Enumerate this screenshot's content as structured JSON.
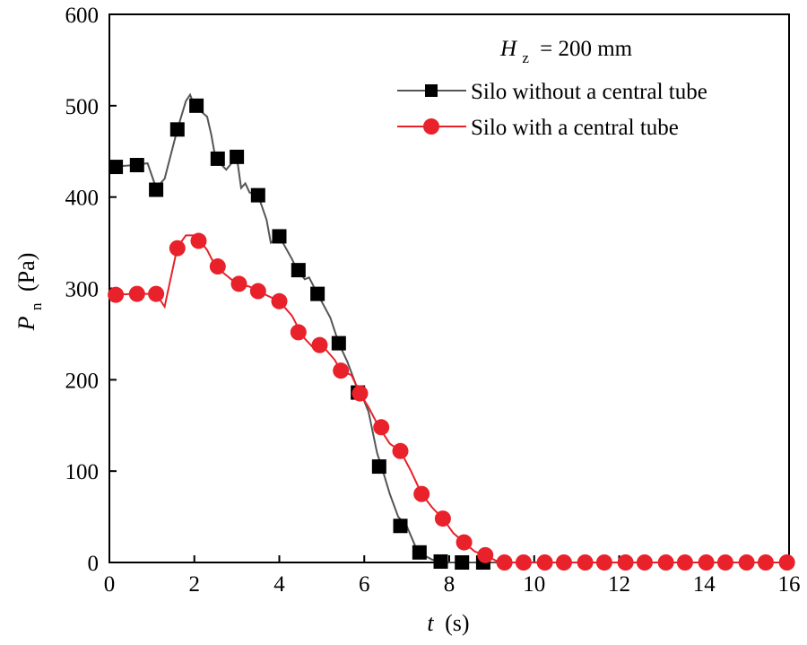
{
  "chart_data": {
    "type": "line",
    "xlabel": {
      "var": "t",
      "unit": "(s)"
    },
    "ylabel": {
      "var": "P",
      "sub": "n",
      "unit": "(Pa)"
    },
    "xlim": [
      0,
      16
    ],
    "ylim": [
      0,
      600
    ],
    "xticks": [
      0,
      2,
      4,
      6,
      8,
      10,
      12,
      14,
      16
    ],
    "yticks": [
      0,
      100,
      200,
      300,
      400,
      500,
      600
    ],
    "annotation": {
      "var": "H",
      "sub": "z",
      "text": "= 200 mm"
    },
    "legend_position": "top-right",
    "series": [
      {
        "name": "Silo without a central tube",
        "color": "#000000",
        "line_color": "#555555",
        "marker": "square",
        "line": [
          [
            0,
            433
          ],
          [
            0.6,
            435
          ],
          [
            0.9,
            437
          ],
          [
            1.1,
            410
          ],
          [
            1.3,
            420
          ],
          [
            1.6,
            474
          ],
          [
            1.8,
            505
          ],
          [
            1.9,
            512
          ],
          [
            2.0,
            500
          ],
          [
            2.1,
            496
          ],
          [
            2.3,
            488
          ],
          [
            2.4,
            468
          ],
          [
            2.5,
            442
          ],
          [
            2.75,
            430
          ],
          [
            3.0,
            444
          ],
          [
            3.1,
            410
          ],
          [
            3.2,
            415
          ],
          [
            3.3,
            405
          ],
          [
            3.5,
            402
          ],
          [
            3.7,
            375
          ],
          [
            3.8,
            350
          ],
          [
            4.0,
            357
          ],
          [
            4.3,
            332
          ],
          [
            4.4,
            322
          ],
          [
            4.6,
            310
          ],
          [
            4.7,
            312
          ],
          [
            4.9,
            294
          ],
          [
            5.2,
            268
          ],
          [
            5.4,
            240
          ],
          [
            5.6,
            220
          ],
          [
            5.8,
            195
          ],
          [
            5.9,
            188
          ],
          [
            6.1,
            165
          ],
          [
            6.3,
            120
          ],
          [
            6.4,
            106
          ],
          [
            6.6,
            75
          ],
          [
            6.8,
            50
          ],
          [
            7.0,
            40
          ],
          [
            7.2,
            18
          ],
          [
            7.4,
            8
          ],
          [
            7.6,
            3
          ],
          [
            7.8,
            1
          ],
          [
            8.0,
            0
          ],
          [
            8.3,
            0
          ],
          [
            8.8,
            0
          ],
          [
            16,
            0
          ]
        ],
        "markers": [
          [
            0.15,
            433
          ],
          [
            0.65,
            435
          ],
          [
            1.1,
            408
          ],
          [
            1.6,
            474
          ],
          [
            2.05,
            500
          ],
          [
            2.55,
            442
          ],
          [
            3.0,
            444
          ],
          [
            3.5,
            402
          ],
          [
            4.0,
            357
          ],
          [
            4.45,
            320
          ],
          [
            4.9,
            294
          ],
          [
            5.4,
            240
          ],
          [
            5.85,
            186
          ],
          [
            6.35,
            105
          ],
          [
            6.85,
            40
          ],
          [
            7.3,
            11
          ],
          [
            7.8,
            1
          ],
          [
            8.3,
            0
          ],
          [
            8.8,
            0
          ]
        ]
      },
      {
        "name": "Silo with a central tube",
        "color": "#e8212a",
        "line_color": "#e8212a",
        "marker": "circle",
        "line": [
          [
            0,
            293
          ],
          [
            0.6,
            294
          ],
          [
            1.1,
            294
          ],
          [
            1.3,
            280
          ],
          [
            1.6,
            345
          ],
          [
            1.8,
            358
          ],
          [
            2.0,
            358
          ],
          [
            2.1,
            354
          ],
          [
            2.3,
            342
          ],
          [
            2.5,
            324
          ],
          [
            3.0,
            305
          ],
          [
            3.3,
            302
          ],
          [
            3.5,
            297
          ],
          [
            4.0,
            286
          ],
          [
            4.3,
            270
          ],
          [
            4.5,
            252
          ],
          [
            4.6,
            245
          ],
          [
            4.8,
            235
          ],
          [
            5.0,
            238
          ],
          [
            5.3,
            222
          ],
          [
            5.45,
            210
          ],
          [
            5.7,
            205
          ],
          [
            5.9,
            185
          ],
          [
            6.1,
            170
          ],
          [
            6.35,
            148
          ],
          [
            6.6,
            130
          ],
          [
            6.85,
            122
          ],
          [
            7.1,
            100
          ],
          [
            7.35,
            75
          ],
          [
            7.6,
            60
          ],
          [
            7.85,
            48
          ],
          [
            8.1,
            32
          ],
          [
            8.35,
            22
          ],
          [
            8.6,
            12
          ],
          [
            8.85,
            8
          ],
          [
            9.1,
            2
          ],
          [
            9.3,
            0
          ],
          [
            16,
            0
          ]
        ],
        "markers": [
          [
            0.15,
            293
          ],
          [
            0.65,
            294
          ],
          [
            1.1,
            294
          ],
          [
            1.6,
            344
          ],
          [
            2.1,
            352
          ],
          [
            2.55,
            324
          ],
          [
            3.05,
            305
          ],
          [
            3.5,
            297
          ],
          [
            4.0,
            286
          ],
          [
            4.45,
            252
          ],
          [
            4.95,
            238
          ],
          [
            5.45,
            210
          ],
          [
            5.9,
            185
          ],
          [
            6.4,
            148
          ],
          [
            6.85,
            122
          ],
          [
            7.35,
            75
          ],
          [
            7.85,
            48
          ],
          [
            8.35,
            22
          ],
          [
            8.85,
            8
          ],
          [
            9.3,
            0
          ],
          [
            9.75,
            0
          ],
          [
            10.25,
            0
          ],
          [
            10.7,
            0
          ],
          [
            11.2,
            0
          ],
          [
            11.65,
            0
          ],
          [
            12.15,
            0
          ],
          [
            12.6,
            0
          ],
          [
            13.1,
            0
          ],
          [
            13.55,
            0
          ],
          [
            14.05,
            0
          ],
          [
            14.5,
            0
          ],
          [
            15.0,
            0
          ],
          [
            15.45,
            0
          ],
          [
            15.95,
            0
          ]
        ]
      }
    ]
  }
}
